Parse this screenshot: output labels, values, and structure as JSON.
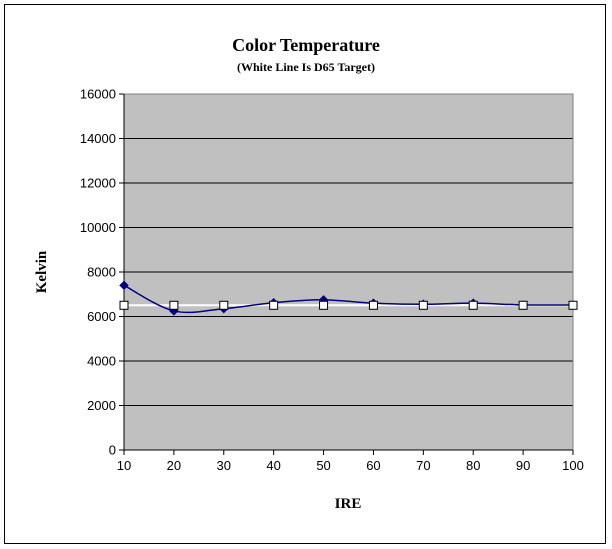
{
  "chart_data": {
    "type": "line",
    "title": "Color Temperature",
    "subtitle": "(White Line Is D65 Target)",
    "xlabel": "IRE",
    "ylabel": "Kelvin",
    "x": [
      10,
      20,
      30,
      40,
      50,
      60,
      70,
      80,
      90,
      100
    ],
    "ylim": [
      0,
      16000
    ],
    "yticks": [
      0,
      2000,
      4000,
      6000,
      8000,
      10000,
      12000,
      14000,
      16000
    ],
    "grid": true,
    "legend": "none",
    "series": [
      {
        "values": [
          7400,
          6250,
          6350,
          6620,
          6750,
          6600,
          6550,
          6600,
          6520,
          6520
        ],
        "color": "#000080",
        "marker": "diamond",
        "smooth": true
      },
      {
        "values": [
          6504,
          6504,
          6504,
          6504,
          6504,
          6504,
          6504,
          6504,
          6504,
          6504
        ],
        "color": "#ffffff",
        "marker": "square"
      }
    ],
    "colors": {
      "plot_bg": "#c0c0c0",
      "grid": "#000000",
      "page_bg": "#ffffff"
    }
  }
}
